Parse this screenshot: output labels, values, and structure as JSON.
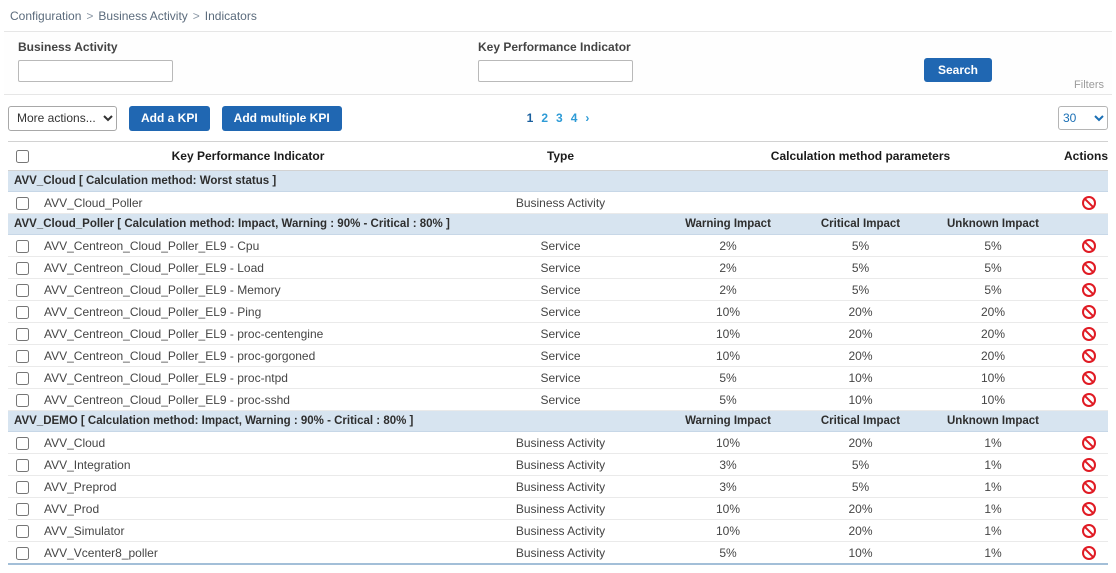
{
  "breadcrumb": {
    "separator": ">",
    "items": [
      "Configuration",
      "Business Activity",
      "Indicators"
    ]
  },
  "filter_panel": {
    "business_activity_label": "Business Activity",
    "business_activity_value": "",
    "kpi_label": "Key Performance Indicator",
    "kpi_value": "",
    "search_button": "Search",
    "caption": "Filters"
  },
  "toolbar": {
    "more_actions_label": "More actions...",
    "add_kpi_button": "Add a KPI",
    "add_multiple_kpi_button": "Add multiple KPI",
    "pagination": {
      "pages": [
        "1",
        "2",
        "3",
        "4"
      ],
      "current": "1",
      "next_label": "›"
    },
    "page_size": "30"
  },
  "table": {
    "columns": {
      "kpi": "Key Performance Indicator",
      "type": "Type",
      "calc": "Calculation method parameters",
      "warning": "Warning Impact",
      "critical": "Critical Impact",
      "unknown": "Unknown Impact",
      "actions": "Actions"
    },
    "groups": [
      {
        "title": "AVV_Cloud [ Calculation method: Worst status ]",
        "show_impact_headers": false,
        "rows": [
          {
            "name": "AVV_Cloud_Poller",
            "type": "Business Activity",
            "warning": "",
            "critical": "",
            "unknown": ""
          }
        ]
      },
      {
        "title": "AVV_Cloud_Poller [ Calculation method: Impact, Warning : 90% - Critical : 80% ]",
        "show_impact_headers": true,
        "rows": [
          {
            "name": "AVV_Centreon_Cloud_Poller_EL9 - Cpu",
            "type": "Service",
            "warning": "2%",
            "critical": "5%",
            "unknown": "5%"
          },
          {
            "name": "AVV_Centreon_Cloud_Poller_EL9 - Load",
            "type": "Service",
            "warning": "2%",
            "critical": "5%",
            "unknown": "5%"
          },
          {
            "name": "AVV_Centreon_Cloud_Poller_EL9 - Memory",
            "type": "Service",
            "warning": "2%",
            "critical": "5%",
            "unknown": "5%"
          },
          {
            "name": "AVV_Centreon_Cloud_Poller_EL9 - Ping",
            "type": "Service",
            "warning": "10%",
            "critical": "20%",
            "unknown": "20%"
          },
          {
            "name": "AVV_Centreon_Cloud_Poller_EL9 - proc-centengine",
            "type": "Service",
            "warning": "10%",
            "critical": "20%",
            "unknown": "20%"
          },
          {
            "name": "AVV_Centreon_Cloud_Poller_EL9 - proc-gorgoned",
            "type": "Service",
            "warning": "10%",
            "critical": "20%",
            "unknown": "20%"
          },
          {
            "name": "AVV_Centreon_Cloud_Poller_EL9 - proc-ntpd",
            "type": "Service",
            "warning": "5%",
            "critical": "10%",
            "unknown": "10%"
          },
          {
            "name": "AVV_Centreon_Cloud_Poller_EL9 - proc-sshd",
            "type": "Service",
            "warning": "5%",
            "critical": "10%",
            "unknown": "10%"
          }
        ]
      },
      {
        "title": "AVV_DEMO [ Calculation method: Impact, Warning : 90% - Critical : 80% ]",
        "show_impact_headers": true,
        "rows": [
          {
            "name": "AVV_Cloud",
            "type": "Business Activity",
            "warning": "10%",
            "critical": "20%",
            "unknown": "1%"
          },
          {
            "name": "AVV_Integration",
            "type": "Business Activity",
            "warning": "3%",
            "critical": "5%",
            "unknown": "1%"
          },
          {
            "name": "AVV_Preprod",
            "type": "Business Activity",
            "warning": "3%",
            "critical": "5%",
            "unknown": "1%"
          },
          {
            "name": "AVV_Prod",
            "type": "Business Activity",
            "warning": "10%",
            "critical": "20%",
            "unknown": "1%"
          },
          {
            "name": "AVV_Simulator",
            "type": "Business Activity",
            "warning": "10%",
            "critical": "20%",
            "unknown": "1%"
          },
          {
            "name": "AVV_Vcenter8_poller",
            "type": "Business Activity",
            "warning": "5%",
            "critical": "10%",
            "unknown": "1%"
          }
        ]
      }
    ]
  },
  "colors": {
    "button_blue": "#2067b2",
    "group_row_bg": "#d7e4f0",
    "action_red": "#e01b24",
    "link_blue": "#2e9bd6",
    "pagination_current": "#1a5f9e"
  }
}
